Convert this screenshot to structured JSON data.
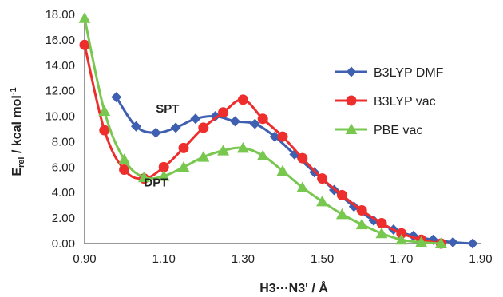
{
  "chart_data": {
    "type": "line",
    "xlabel": "H3···N3' / Å",
    "ylabel_main": "E",
    "ylabel_sub": "rel",
    "ylabel_rest": " / kcal mol",
    "ylabel_sup": "-1",
    "xlim": [
      0.9,
      1.9
    ],
    "ylim": [
      0.0,
      18.0
    ],
    "x_ticks": [
      "0.90",
      "1.10",
      "1.30",
      "1.50",
      "1.70",
      "1.90"
    ],
    "y_ticks": [
      "0.00",
      "2.00",
      "4.00",
      "6.00",
      "8.00",
      "10.00",
      "12.00",
      "14.00",
      "16.00",
      "18.00"
    ],
    "grid": false,
    "legend_position": "right",
    "annotations": [
      {
        "text": "SPT",
        "x": 1.08,
        "y": 10.3
      },
      {
        "text": "DPT",
        "x": 1.05,
        "y": 4.5
      }
    ],
    "series": [
      {
        "name": "B3LYP DMF",
        "color": "#3f5fb0",
        "marker": "diamond",
        "x": [
          0.98,
          1.03,
          1.08,
          1.13,
          1.18,
          1.23,
          1.28,
          1.33,
          1.38,
          1.43,
          1.48,
          1.53,
          1.58,
          1.63,
          1.68,
          1.73,
          1.78,
          1.83,
          1.88
        ],
        "y": [
          11.5,
          9.2,
          8.7,
          9.1,
          9.8,
          10.0,
          9.6,
          9.4,
          8.4,
          7.0,
          5.6,
          4.2,
          2.9,
          1.8,
          1.1,
          0.6,
          0.3,
          0.1,
          0.0
        ]
      },
      {
        "name": "B3LYP vac",
        "color": "#ee2d2d",
        "marker": "circle",
        "x": [
          0.9,
          0.95,
          1.0,
          1.05,
          1.1,
          1.15,
          1.2,
          1.25,
          1.3,
          1.35,
          1.4,
          1.45,
          1.5,
          1.55,
          1.6,
          1.65,
          1.7,
          1.75,
          1.8
        ],
        "y": [
          15.6,
          8.9,
          5.8,
          5.1,
          6.0,
          7.5,
          9.1,
          10.3,
          11.3,
          9.8,
          8.4,
          6.7,
          5.1,
          3.8,
          2.6,
          1.6,
          0.8,
          0.3,
          0.0
        ]
      },
      {
        "name": "PBE vac",
        "color": "#78c850",
        "marker": "triangle",
        "x": [
          0.9,
          0.95,
          1.0,
          1.05,
          1.1,
          1.15,
          1.2,
          1.25,
          1.3,
          1.35,
          1.4,
          1.45,
          1.5,
          1.55,
          1.6,
          1.65,
          1.7,
          1.75,
          1.8
        ],
        "y": [
          17.7,
          10.4,
          6.6,
          5.2,
          5.3,
          6.0,
          6.8,
          7.3,
          7.5,
          6.9,
          5.7,
          4.4,
          3.3,
          2.3,
          1.5,
          0.8,
          0.3,
          0.1,
          0.0
        ]
      }
    ]
  }
}
